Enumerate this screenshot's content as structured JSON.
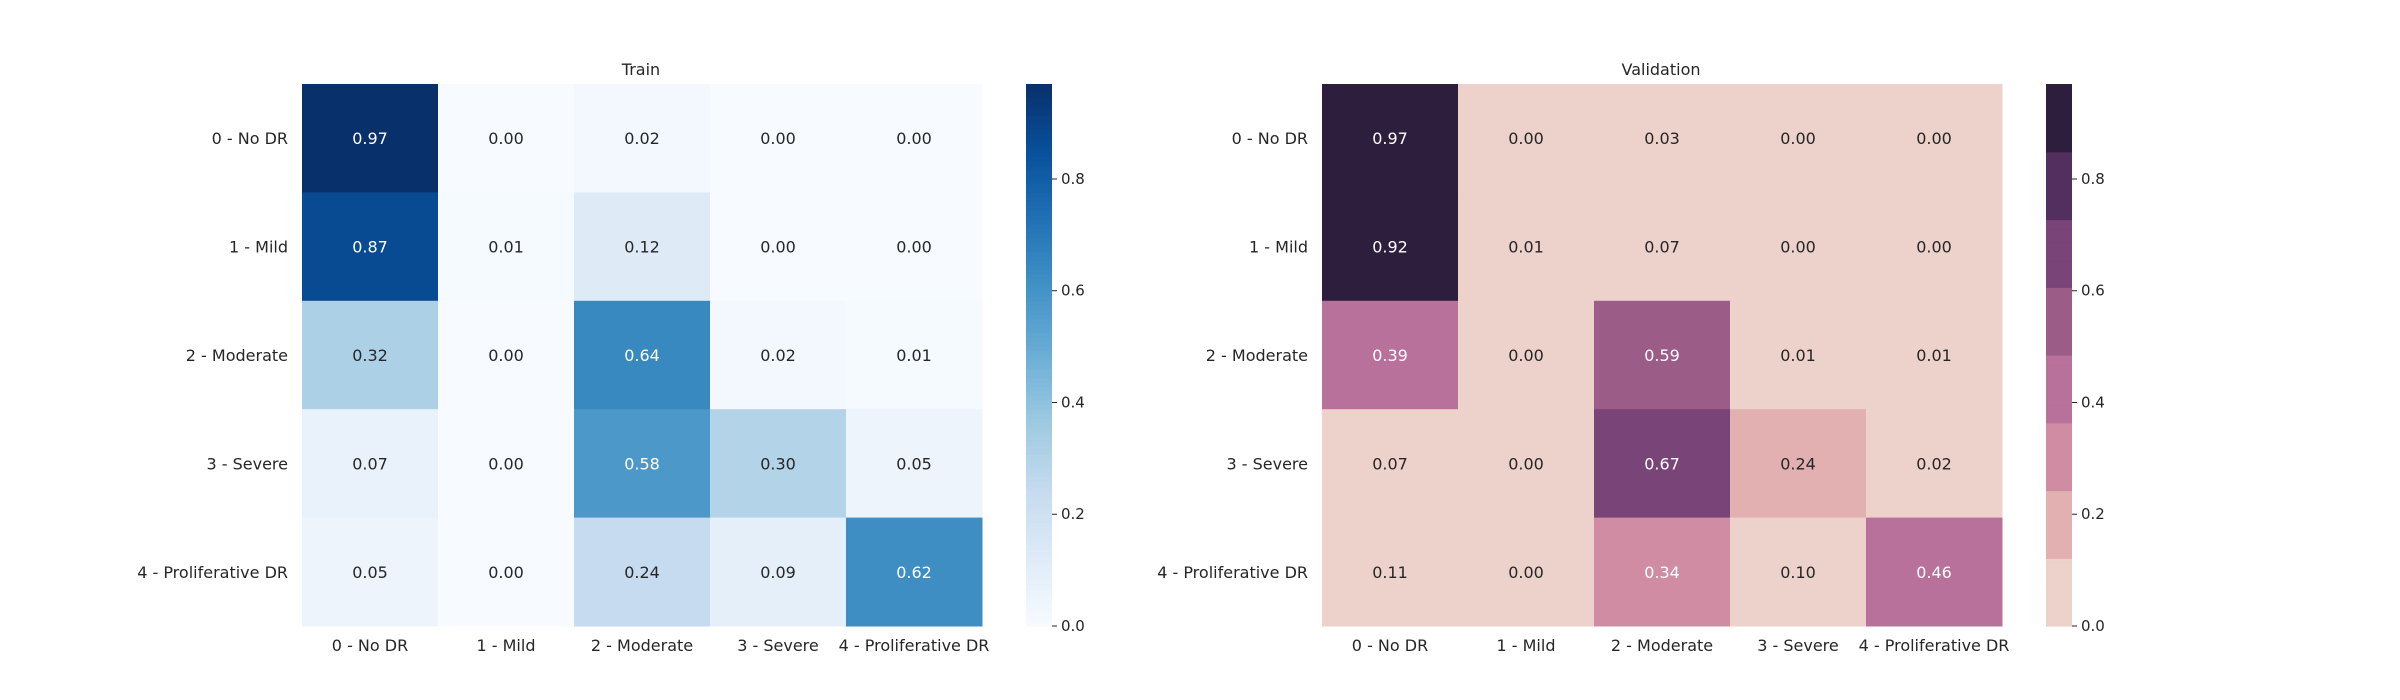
{
  "chart_data": [
    {
      "type": "heatmap",
      "title": "Train",
      "xlabel": "",
      "ylabel": "",
      "row_labels": [
        "0 - No DR",
        "1 - Mild",
        "2 - Moderate",
        "3 - Severe",
        "4 - Proliferative DR"
      ],
      "col_labels": [
        "0 - No DR",
        "1 - Mild",
        "2 - Moderate",
        "3 - Severe",
        "4 - Proliferative DR"
      ],
      "values": [
        [
          0.97,
          0.0,
          0.02,
          0.0,
          0.0
        ],
        [
          0.87,
          0.01,
          0.12,
          0.0,
          0.0
        ],
        [
          0.32,
          0.0,
          0.64,
          0.02,
          0.01
        ],
        [
          0.07,
          0.0,
          0.58,
          0.3,
          0.05
        ],
        [
          0.05,
          0.0,
          0.24,
          0.09,
          0.62
        ]
      ],
      "value_format": "0.00",
      "colormap": "Blues",
      "colormap_colors": [
        "#f7fbff",
        "#deebf7",
        "#c6dbef",
        "#9ecae1",
        "#6baed6",
        "#4292c6",
        "#2171b5",
        "#08519c",
        "#08306b"
      ],
      "colorbar": {
        "range": [
          0,
          0.97
        ],
        "ticks": [
          0.0,
          0.2,
          0.4,
          0.6,
          0.8
        ],
        "tick_labels": [
          "0.0",
          "0.2",
          "0.4",
          "0.6",
          "0.8"
        ]
      }
    },
    {
      "type": "heatmap",
      "title": "Validation",
      "xlabel": "",
      "ylabel": "",
      "row_labels": [
        "0 - No DR",
        "1 - Mild",
        "2 - Moderate",
        "3 - Severe",
        "4 - Proliferative DR"
      ],
      "col_labels": [
        "0 - No DR",
        "1 - Mild",
        "2 - Moderate",
        "3 - Severe",
        "4 - Proliferative DR"
      ],
      "values": [
        [
          0.97,
          0.0,
          0.03,
          0.0,
          0.0
        ],
        [
          0.92,
          0.01,
          0.07,
          0.0,
          0.0
        ],
        [
          0.39,
          0.0,
          0.59,
          0.01,
          0.01
        ],
        [
          0.07,
          0.0,
          0.67,
          0.24,
          0.02
        ],
        [
          0.11,
          0.0,
          0.34,
          0.1,
          0.46
        ]
      ],
      "value_format": "0.00",
      "colormap": "cubehelix-discrete",
      "colormap_colors": [
        "#edd1cb",
        "#e2b0b1",
        "#d08ca2",
        "#b8719a",
        "#9c5c88",
        "#794478",
        "#522f5f",
        "#2d1e3e"
      ],
      "colorbar": {
        "range": [
          0,
          0.97
        ],
        "ticks": [
          0.0,
          0.2,
          0.4,
          0.6,
          0.8
        ],
        "tick_labels": [
          "0.0",
          "0.2",
          "0.4",
          "0.6",
          "0.8"
        ]
      }
    }
  ]
}
